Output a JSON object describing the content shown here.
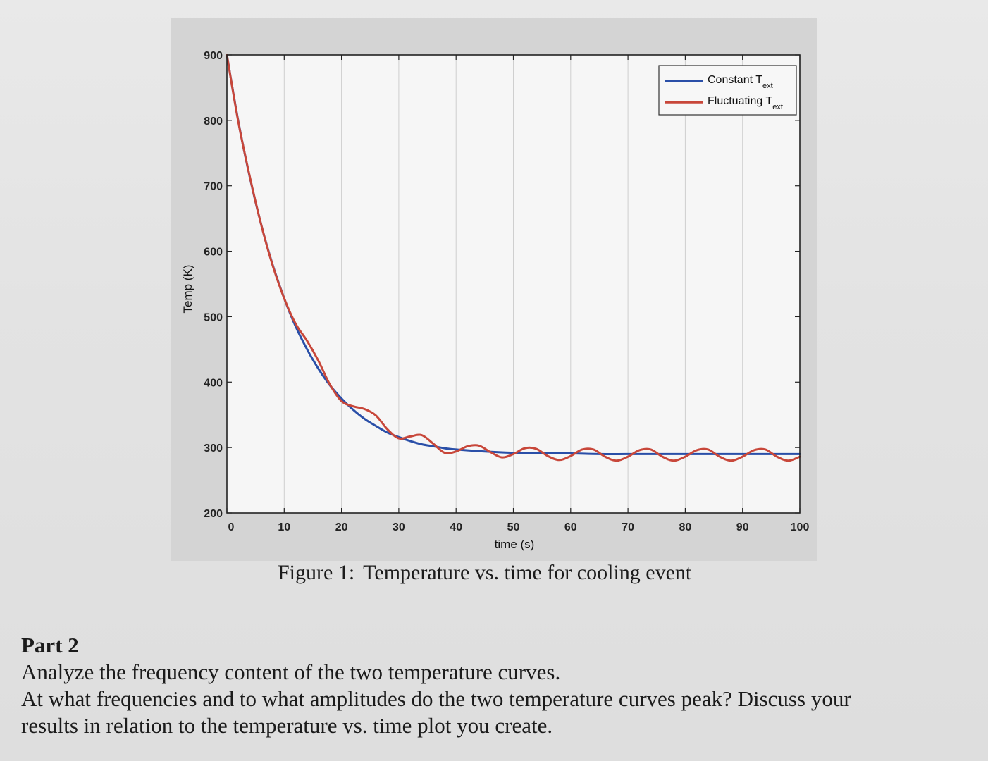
{
  "chart_data": {
    "type": "line",
    "title": "",
    "xlabel": "time (s)",
    "ylabel": "Temp (K)",
    "xlim": [
      0,
      100
    ],
    "ylim": [
      200,
      900
    ],
    "xticks": [
      0,
      10,
      20,
      30,
      40,
      50,
      60,
      70,
      80,
      90,
      100
    ],
    "yticks": [
      200,
      300,
      400,
      500,
      600,
      700,
      800,
      900
    ],
    "grid": "vertical",
    "legend_position": "top-right",
    "series": [
      {
        "name": "Constant T",
        "name_subscript": "ext",
        "color": "#2a4fa8",
        "x": [
          0,
          2,
          4,
          6,
          8,
          10,
          12,
          14,
          16,
          18,
          20,
          22,
          24,
          26,
          28,
          30,
          32,
          34,
          36,
          38,
          40,
          45,
          50,
          55,
          60,
          65,
          70,
          75,
          80,
          85,
          90,
          95,
          100
        ],
        "y": [
          900,
          798,
          713,
          640,
          579,
          528,
          485,
          450,
          420,
          395,
          375,
          358,
          344,
          333,
          323,
          316,
          310,
          305,
          302,
          299,
          297,
          294,
          292,
          291,
          291,
          290,
          290,
          290,
          290,
          290,
          290,
          290,
          290
        ]
      },
      {
        "name": "Fluctuating T",
        "name_subscript": "ext",
        "color": "#c8473a",
        "x": [
          0,
          2,
          4,
          6,
          8,
          10,
          12,
          14,
          16,
          18,
          20,
          22,
          24,
          26,
          28,
          30,
          32,
          34,
          36,
          38,
          40,
          42,
          44,
          46,
          48,
          50,
          52,
          54,
          56,
          58,
          60,
          62,
          64,
          66,
          68,
          70,
          72,
          74,
          76,
          78,
          80,
          82,
          84,
          86,
          88,
          90,
          92,
          94,
          96,
          98,
          100
        ],
        "y": [
          900,
          797,
          714,
          640,
          578,
          528,
          489,
          463,
          432,
          396,
          371,
          363,
          359,
          349,
          328,
          314,
          317,
          319,
          306,
          292,
          294,
          302,
          303,
          293,
          285,
          290,
          299,
          298,
          287,
          281,
          287,
          297,
          297,
          286,
          280,
          286,
          296,
          297,
          286,
          280,
          286,
          296,
          297,
          286,
          280,
          286,
          296,
          297,
          286,
          280,
          286
        ]
      }
    ]
  },
  "caption": {
    "number": "Figure 1:",
    "text": "Temperature vs. time for cooling event"
  },
  "part2": {
    "heading": "Part 2",
    "lines": [
      "Analyze the frequency content of the two temperature curves.",
      "At what frequencies and to what amplitudes do the two temperature curves peak? Discuss your",
      "results in relation to the temperature vs. time plot you create."
    ]
  }
}
